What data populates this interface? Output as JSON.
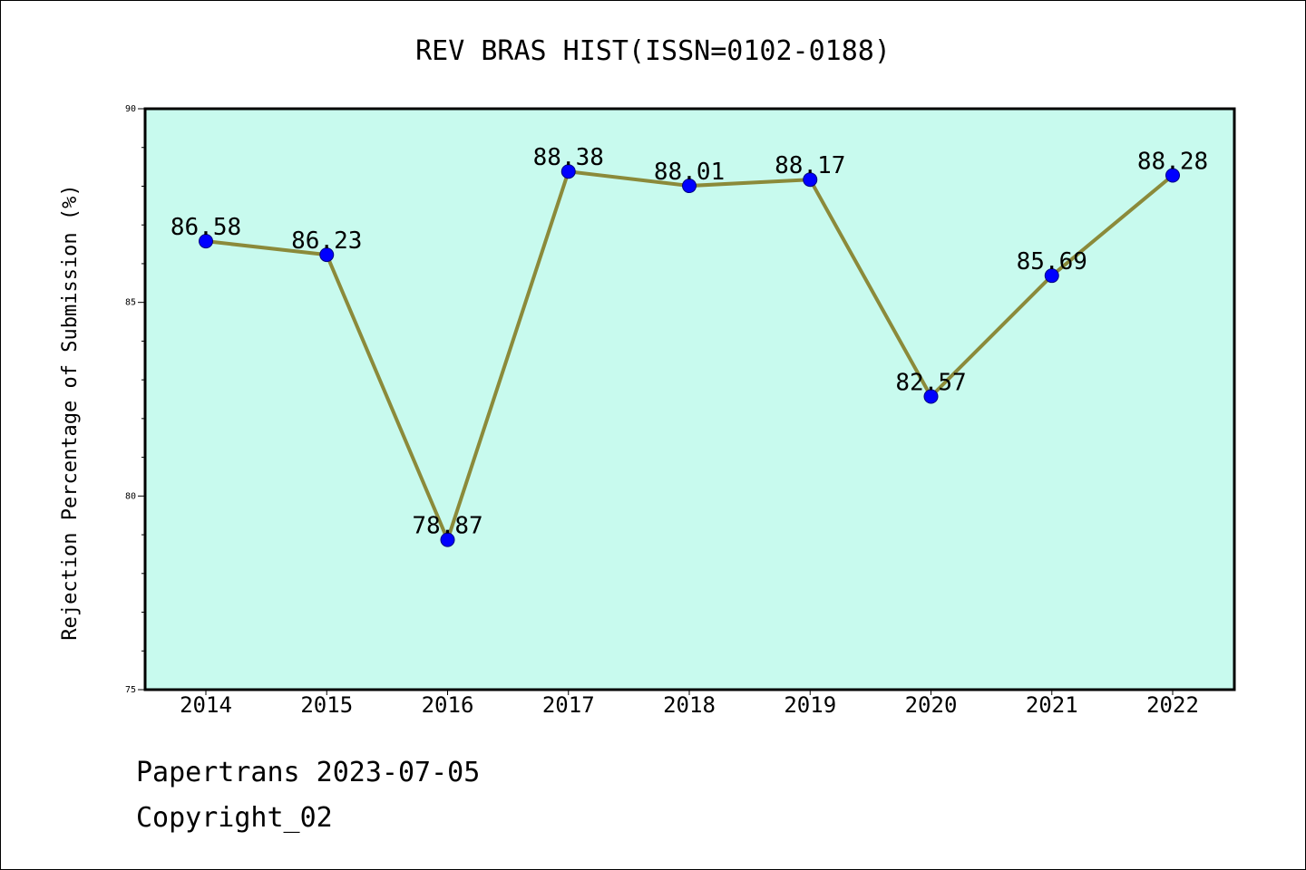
{
  "chart_data": {
    "type": "line",
    "title": "REV BRAS HIST(ISSN=0102-0188)",
    "xlabel": "",
    "ylabel": "Rejection Percentage of Submission (%)",
    "categories": [
      "2014",
      "2015",
      "2016",
      "2017",
      "2018",
      "2019",
      "2020",
      "2021",
      "2022"
    ],
    "series": [
      {
        "values": [
          86.58,
          86.23,
          78.87,
          88.38,
          88.01,
          88.17,
          82.57,
          85.69,
          88.28
        ],
        "labels": [
          "86.58",
          "86.23",
          "78.87",
          "88.38",
          "88.01",
          "88.17",
          "82.57",
          "85.69",
          "88.28"
        ]
      }
    ],
    "ylim": [
      75,
      90
    ],
    "y_ticks": [
      "75",
      "80",
      "85",
      "90"
    ],
    "grid": false,
    "legend": "none",
    "colors": {
      "plot_background": "#c8faee",
      "line": "#8b8a3a",
      "marker": "#0000ff"
    }
  },
  "footer": {
    "line1": "Papertrans 2023-07-05",
    "line2": "Copyright_02"
  }
}
